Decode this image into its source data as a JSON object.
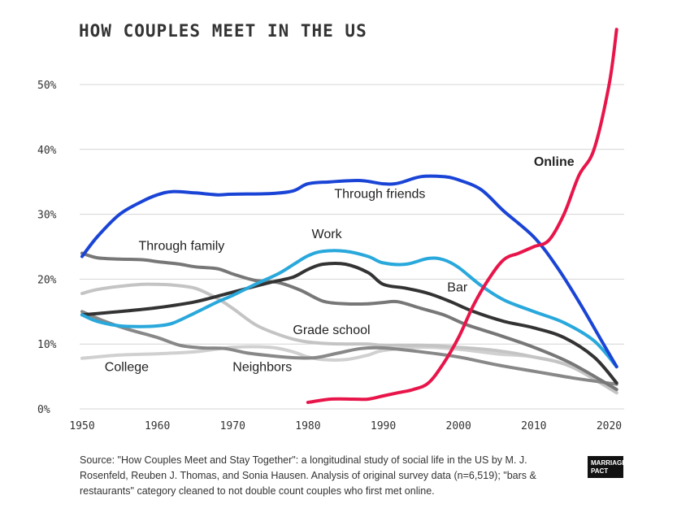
{
  "chart_data": {
    "type": "line",
    "title": "HOW COUPLES MEET IN THE US",
    "xlabel": "",
    "ylabel": "",
    "xlim": [
      1950,
      2022
    ],
    "ylim": [
      0,
      55
    ],
    "x_ticks": [
      1950,
      1960,
      1970,
      1980,
      1990,
      2000,
      2010,
      2020
    ],
    "x_tick_labels": [
      "1950",
      "1960",
      "1970",
      "1980",
      "1990",
      "2000",
      "2010",
      "2020"
    ],
    "y_ticks": [
      0,
      10,
      20,
      30,
      40,
      50
    ],
    "y_tick_labels": [
      "0%",
      "10%",
      "20%",
      "30%",
      "40%",
      "50%"
    ],
    "grid": true,
    "series": [
      {
        "name": "Through friends",
        "color": "#1a44d6",
        "x": [
          1950,
          1952,
          1955,
          1958,
          1960,
          1962,
          1965,
          1968,
          1970,
          1975,
          1978,
          1980,
          1983,
          1987,
          1990,
          1992,
          1995,
          1998,
          2000,
          2003,
          2006,
          2010,
          2013,
          2016,
          2019,
          2021
        ],
        "y": [
          23.5,
          26.5,
          30,
          32,
          33,
          33.5,
          33.3,
          33,
          33.1,
          33.2,
          33.6,
          34.7,
          35,
          35.2,
          34.7,
          34.8,
          35.8,
          35.8,
          35.3,
          33.8,
          30.5,
          26.5,
          22,
          16.5,
          10.5,
          6.5
        ]
      },
      {
        "name": "Online",
        "color": "#e8154a",
        "x": [
          1980,
          1983,
          1986,
          1988,
          1990,
          1992,
          1994,
          1996,
          1998,
          2000,
          2002,
          2004,
          2006,
          2008,
          2010,
          2012,
          2014,
          2016,
          2018,
          2020,
          2021
        ],
        "y": [
          1,
          1.5,
          1.5,
          1.5,
          2,
          2.5,
          3,
          4,
          7,
          11,
          16,
          20,
          23,
          24,
          25,
          26,
          30,
          36,
          40,
          50,
          58.5
        ]
      },
      {
        "name": "Work",
        "color": "#29a8dc",
        "x": [
          1950,
          1952,
          1955,
          1958,
          1960,
          1962,
          1965,
          1968,
          1970,
          1973,
          1976,
          1978,
          1980,
          1982,
          1985,
          1988,
          1990,
          1993,
          1996,
          1998,
          2000,
          2003,
          2006,
          2010,
          2014,
          2018,
          2021
        ],
        "y": [
          14.5,
          13.5,
          12.8,
          12.7,
          12.8,
          13.2,
          14.8,
          16.5,
          17.5,
          19.2,
          20.8,
          22.2,
          23.6,
          24.3,
          24.3,
          23.5,
          22.5,
          22.3,
          23.2,
          23,
          21.8,
          19,
          16.8,
          15,
          13.3,
          10.5,
          6.5
        ]
      },
      {
        "name": "Bar",
        "color": "#333333",
        "x": [
          1950,
          1955,
          1960,
          1965,
          1970,
          1975,
          1978,
          1980,
          1982,
          1985,
          1988,
          1990,
          1993,
          1996,
          1999,
          2002,
          2006,
          2010,
          2014,
          2018,
          2021
        ],
        "y": [
          14.5,
          15,
          15.6,
          16.5,
          18,
          19.5,
          20.3,
          21.5,
          22.3,
          22.3,
          21,
          19.2,
          18.6,
          17.8,
          16.5,
          15,
          13.5,
          12.5,
          11,
          8,
          4
        ]
      },
      {
        "name": "Through family",
        "color": "#777777",
        "x": [
          1950,
          1952,
          1955,
          1958,
          1960,
          1963,
          1965,
          1968,
          1970,
          1973,
          1976,
          1979,
          1982,
          1985,
          1988,
          1990,
          1992,
          1995,
          1998,
          2001,
          2005,
          2010,
          2015,
          2021
        ],
        "y": [
          24,
          23.3,
          23.1,
          23,
          22.7,
          22.3,
          21.9,
          21.6,
          20.8,
          19.8,
          19.5,
          18.3,
          16.6,
          16.2,
          16.2,
          16.4,
          16.5,
          15.5,
          14.5,
          13,
          11.5,
          9.5,
          7,
          3
        ]
      },
      {
        "name": "Grade school",
        "color": "#c4c4c4",
        "x": [
          1950,
          1952,
          1955,
          1958,
          1960,
          1962,
          1965,
          1968,
          1970,
          1973,
          1976,
          1979,
          1982,
          1985,
          1988,
          1990,
          1995,
          2000,
          2005,
          2010,
          2015,
          2021
        ],
        "y": [
          17.8,
          18.4,
          18.9,
          19.2,
          19.2,
          19.1,
          18.6,
          17,
          15.5,
          13,
          11.5,
          10.5,
          10.1,
          10,
          10,
          9.8,
          9.8,
          9.5,
          9,
          8,
          6.5,
          2.5
        ]
      },
      {
        "name": "College",
        "color": "#d0d0d0",
        "x": [
          1950,
          1955,
          1960,
          1965,
          1970,
          1975,
          1978,
          1980,
          1982,
          1985,
          1988,
          1990,
          1995,
          2000,
          2005,
          2010,
          2015,
          2021
        ],
        "y": [
          7.8,
          8.3,
          8.5,
          8.8,
          9.5,
          9.5,
          8.8,
          8,
          7.6,
          7.6,
          8.3,
          9,
          9.5,
          9.2,
          8.5,
          8,
          6.5,
          2.5
        ]
      },
      {
        "name": "Neighbors",
        "color": "#888888",
        "x": [
          1950,
          1953,
          1956,
          1960,
          1963,
          1966,
          1969,
          1972,
          1975,
          1978,
          1981,
          1984,
          1987,
          1990,
          1995,
          2000,
          2005,
          2010,
          2015,
          2021
        ],
        "y": [
          15,
          13.5,
          12.3,
          11,
          9.8,
          9.4,
          9.3,
          8.6,
          8.2,
          7.9,
          7.9,
          8.6,
          9.3,
          9.4,
          8.8,
          8,
          6.8,
          5.8,
          4.8,
          3.8
        ]
      }
    ],
    "labels": [
      {
        "text": "Online",
        "x": 2010,
        "y": 37.5,
        "bold": true
      },
      {
        "text": "Through friends",
        "x": 1983.5,
        "y": 32.5
      },
      {
        "text": "Through family",
        "x": 1957.5,
        "y": 24.5
      },
      {
        "text": "Work",
        "x": 1980.5,
        "y": 26.3
      },
      {
        "text": "Bar",
        "x": 1998.5,
        "y": 18.1
      },
      {
        "text": "Grade school",
        "x": 1978,
        "y": 11.5
      },
      {
        "text": "College",
        "x": 1953,
        "y": 5.8
      },
      {
        "text": "Neighbors",
        "x": 1970,
        "y": 5.8
      }
    ]
  },
  "source_note": "Source: \"How Couples Meet and Stay Together\": a longitudinal study of social life in the US by M. J. Rosenfeld, Reuben J. Thomas, and Sonia Hausen. Analysis of original survey data (n=6,519); \"bars & restaurants\" category cleaned to not double count couples who first met online.",
  "logo": {
    "line1": "MARRIAGE",
    "line2": "PACT"
  }
}
